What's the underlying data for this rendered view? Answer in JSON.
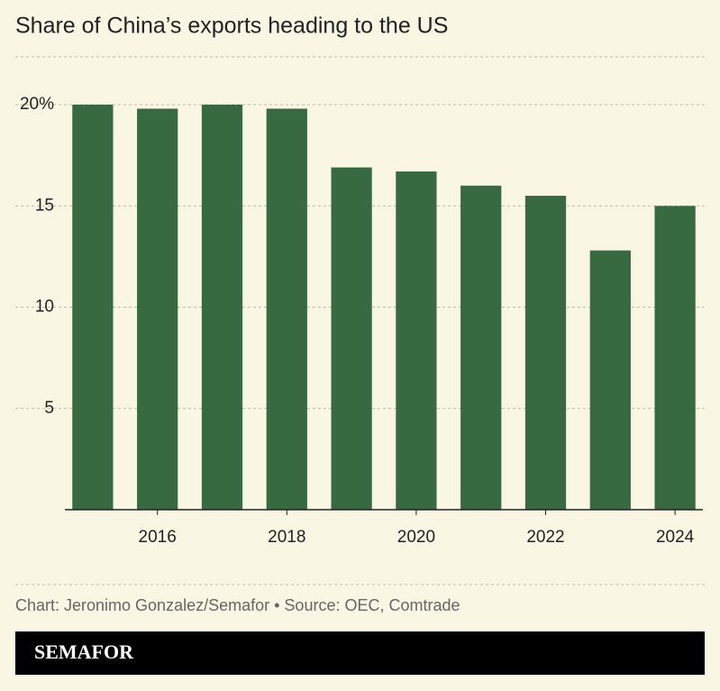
{
  "chart_data": {
    "type": "bar",
    "title": "Share of China’s exports heading to the US",
    "x": [
      2015,
      2016,
      2017,
      2018,
      2019,
      2020,
      2021,
      2022,
      2023,
      2024
    ],
    "values": [
      20.0,
      19.8,
      20.0,
      19.8,
      16.9,
      16.7,
      16.0,
      15.5,
      12.8,
      15.0
    ],
    "color": "#376a41",
    "xlim": [
      2014.57,
      2024.43
    ],
    "xticks": [
      2016,
      2018,
      2020,
      2022,
      2024
    ],
    "ylim": [
      0,
      20
    ],
    "yticks": [
      5,
      10,
      15,
      {
        "value": 20,
        "label": "20%"
      }
    ],
    "grid": true,
    "source": "Chart: Jeronimo Gonzalez/Semafor • Source: OEC, Comtrade",
    "brand": "SEMAFOR"
  }
}
